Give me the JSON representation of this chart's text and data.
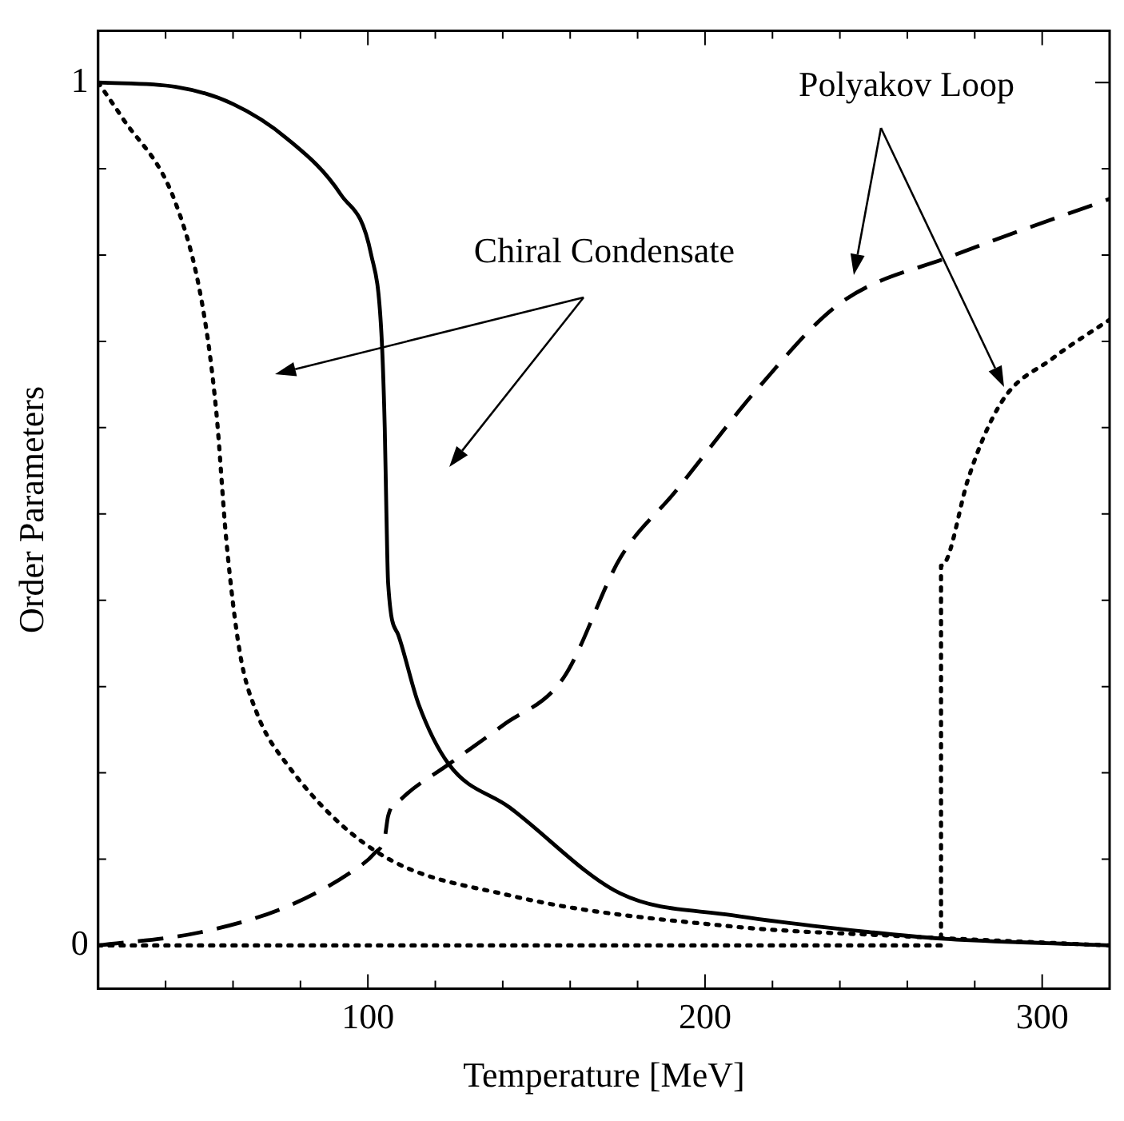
{
  "chart_data": {
    "type": "line",
    "xlabel": "Temperature [MeV]",
    "ylabel": "Order Parameters",
    "xlim": [
      20,
      320
    ],
    "ylim": [
      -0.05,
      1.06
    ],
    "xticks": [
      {
        "value": 40,
        "label": null
      },
      {
        "value": 60,
        "label": null
      },
      {
        "value": 80,
        "label": null
      },
      100,
      {
        "value": 120,
        "label": null
      },
      {
        "value": 140,
        "label": null
      },
      {
        "value": 160,
        "label": null
      },
      {
        "value": 180,
        "label": null
      },
      200,
      {
        "value": 220,
        "label": null
      },
      {
        "value": 240,
        "label": null
      },
      {
        "value": 260,
        "label": null
      },
      {
        "value": 280,
        "label": null
      },
      300
    ],
    "yticks": [
      0,
      {
        "value": 0.1,
        "label": null
      },
      {
        "value": 0.2,
        "label": null
      },
      {
        "value": 0.3,
        "label": null
      },
      {
        "value": 0.4,
        "label": null
      },
      {
        "value": 0.5,
        "label": null
      },
      {
        "value": 0.6,
        "label": null
      },
      {
        "value": 0.7,
        "label": null
      },
      {
        "value": 0.8,
        "label": null
      },
      {
        "value": 0.9,
        "label": null
      },
      1
    ],
    "grid": false,
    "legend": false,
    "marker": "none",
    "annotations": [
      "Chiral Condensate",
      "Polyakov Loop"
    ],
    "series": [
      {
        "color": "#000000",
        "line_style": "solid",
        "x": [
          20,
          43,
          60,
          76,
          92,
          101,
          104,
          105,
          105.5,
          106,
          109,
          115,
          124,
          142,
          175,
          208,
          250,
          270,
          320
        ],
        "values": [
          1.0,
          0.995,
          0.975,
          0.935,
          0.87,
          0.8,
          0.71,
          0.6,
          0.5,
          0.42,
          0.36,
          0.28,
          0.21,
          0.16,
          0.06,
          0.035,
          0.015,
          0.008,
          0.0
        ]
      },
      {
        "color": "#000000",
        "line_style": "dotted",
        "x": [
          20,
          27,
          43,
          51,
          55,
          58,
          62,
          67,
          76,
          102,
          142,
          208,
          257,
          320
        ],
        "values": [
          1.0,
          0.96,
          0.86,
          0.74,
          0.62,
          0.47,
          0.34,
          0.27,
          0.21,
          0.11,
          0.058,
          0.022,
          0.011,
          0.0
        ]
      },
      {
        "color": "#000000",
        "line_style": "dashed",
        "x": [
          20,
          50,
          76,
          95,
          102,
          105,
          106,
          110,
          124,
          140,
          158,
          175,
          191,
          216,
          240,
          274,
          320
        ],
        "values": [
          0.0,
          0.015,
          0.045,
          0.085,
          0.107,
          0.125,
          0.15,
          0.17,
          0.21,
          0.255,
          0.31,
          0.45,
          0.525,
          0.647,
          0.744,
          0.8,
          0.865
        ]
      },
      {
        "color": "#000000",
        "line_style": "dotted",
        "x": [
          20,
          270,
          270,
          272,
          278,
          288,
          303,
          318,
          320
        ],
        "values": [
          0.0,
          0.0,
          0.44,
          0.45,
          0.54,
          0.63,
          0.68,
          0.72,
          0.725
        ]
      }
    ]
  }
}
